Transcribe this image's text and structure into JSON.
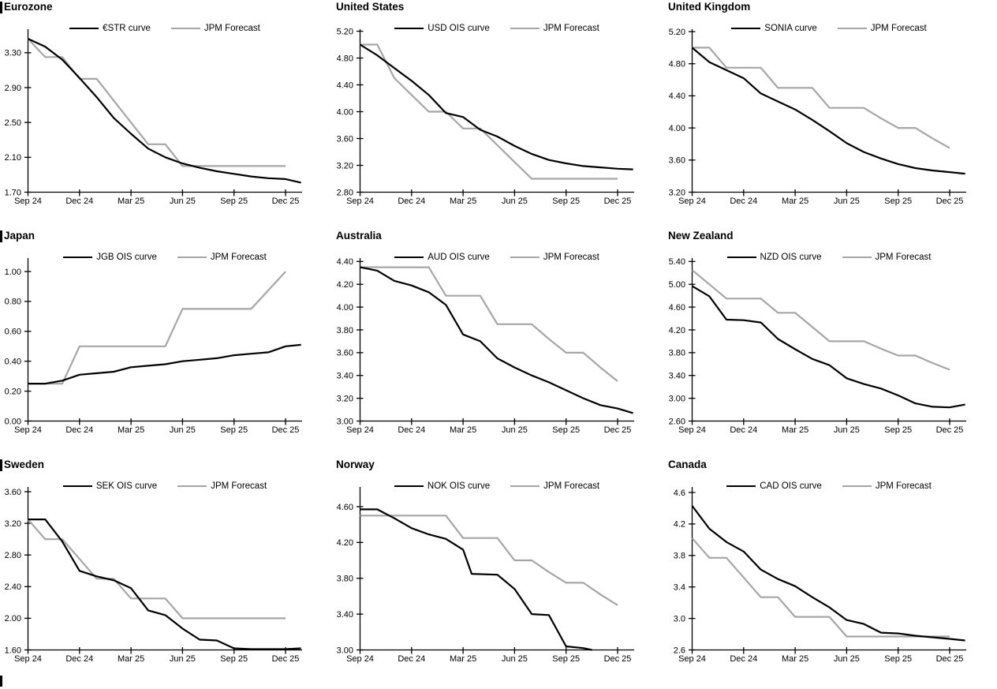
{
  "page": {
    "background": "#ffffff",
    "bottom_left_marker": true
  },
  "colors": {
    "curve": "#000000",
    "forecast": "#a6a6a6",
    "axis": "#000000"
  },
  "x_axis_labels": [
    "Sep 24",
    "Dec 24",
    "Mar 25",
    "Jun 25",
    "Sep 25",
    "Dec 25"
  ],
  "chart_data": [
    {
      "type": "line",
      "title": "Eurozone",
      "title_bar": true,
      "x_tick_labels": [
        "Sep 24",
        "Dec 24",
        "Mar 25",
        "Jun 25",
        "Sep 25",
        "Dec 25"
      ],
      "x_tick_months": [
        0,
        3,
        6,
        9,
        12,
        15
      ],
      "ylim": [
        1.7,
        3.57
      ],
      "y_tick_values": [
        1.7,
        2.1,
        2.5,
        2.9,
        3.3
      ],
      "y_tick_labels": [
        "1.70",
        "2.10",
        "2.50",
        "2.90",
        "3.30"
      ],
      "legend_position": "top-center",
      "series": [
        {
          "name": "€STR curve",
          "color": "#000000",
          "width": 2.2,
          "x": [
            0,
            1,
            2,
            3,
            4,
            5,
            6,
            7,
            8,
            9,
            10,
            11,
            12,
            13,
            14,
            15,
            15.9
          ],
          "y": [
            3.46,
            3.37,
            3.22,
            3.01,
            2.79,
            2.55,
            2.37,
            2.2,
            2.1,
            2.03,
            1.98,
            1.94,
            1.91,
            1.88,
            1.86,
            1.85,
            1.81
          ]
        },
        {
          "name": "JPM Forecast",
          "color": "#a6a6a6",
          "width": 2.2,
          "x": [
            0,
            1,
            2,
            3,
            4,
            5,
            6,
            7,
            8,
            9,
            10,
            11,
            12,
            13,
            14,
            15
          ],
          "y": [
            3.46,
            3.25,
            3.25,
            3.0,
            3.0,
            2.75,
            2.5,
            2.25,
            2.25,
            2.0,
            2.0,
            2.0,
            2.0,
            2.0,
            2.0,
            2.0
          ]
        }
      ]
    },
    {
      "type": "line",
      "title": "United States",
      "title_bar": false,
      "x_tick_labels": [
        "Sep 24",
        "Dec 24",
        "Mar 25",
        "Jun 25",
        "Sep 25",
        "Dec 25"
      ],
      "x_tick_months": [
        0,
        3,
        6,
        9,
        12,
        15
      ],
      "ylim": [
        2.8,
        5.23
      ],
      "y_tick_values": [
        2.8,
        3.2,
        3.6,
        4.0,
        4.4,
        4.8,
        5.2
      ],
      "y_tick_labels": [
        "2.80",
        "3.20",
        "3.60",
        "4.00",
        "4.40",
        "4.80",
        "5.20"
      ],
      "legend_position": "top-center",
      "series": [
        {
          "name": "USD OIS curve",
          "color": "#000000",
          "width": 2.2,
          "x": [
            0,
            1,
            2,
            3,
            4,
            5,
            6,
            7,
            8,
            9,
            10,
            11,
            12,
            13,
            14,
            15,
            15.9
          ],
          "y": [
            5.0,
            4.84,
            4.65,
            4.46,
            4.25,
            3.98,
            3.92,
            3.73,
            3.63,
            3.49,
            3.37,
            3.28,
            3.23,
            3.19,
            3.17,
            3.15,
            3.14
          ]
        },
        {
          "name": "JPM Forecast",
          "color": "#a6a6a6",
          "width": 2.2,
          "x": [
            0,
            1,
            2,
            3,
            4,
            5,
            6,
            7,
            8,
            9,
            10,
            11,
            12,
            13,
            14,
            15
          ],
          "y": [
            5.0,
            5.0,
            4.5,
            4.25,
            4.0,
            4.0,
            3.75,
            3.75,
            3.5,
            3.25,
            3.0,
            3.0,
            3.0,
            3.0,
            3.0,
            3.0
          ]
        }
      ]
    },
    {
      "type": "line",
      "title": "United Kingdom",
      "title_bar": false,
      "x_tick_labels": [
        "Sep 24",
        "Dec 24",
        "Mar 25",
        "Jun 25",
        "Sep 25",
        "Dec 25"
      ],
      "x_tick_months": [
        0,
        3,
        6,
        9,
        12,
        15
      ],
      "ylim": [
        3.2,
        5.23
      ],
      "y_tick_values": [
        3.2,
        3.6,
        4.0,
        4.4,
        4.8,
        5.2
      ],
      "y_tick_labels": [
        "3.20",
        "3.60",
        "4.00",
        "4.40",
        "4.80",
        "5.20"
      ],
      "legend_position": "top-center",
      "series": [
        {
          "name": "SONIA curve",
          "color": "#000000",
          "width": 2.2,
          "x": [
            0,
            1,
            2,
            3,
            4,
            5,
            6,
            7,
            8,
            9,
            10,
            11,
            12,
            13,
            14,
            15,
            15.9
          ],
          "y": [
            5.0,
            4.82,
            4.72,
            4.62,
            4.43,
            4.33,
            4.23,
            4.1,
            3.96,
            3.81,
            3.7,
            3.62,
            3.55,
            3.5,
            3.47,
            3.45,
            3.43
          ]
        },
        {
          "name": "JPM Forecast",
          "color": "#a6a6a6",
          "width": 2.2,
          "x": [
            0,
            1,
            2,
            3,
            4,
            5,
            6,
            7,
            8,
            9,
            10,
            11,
            12,
            13,
            14,
            15
          ],
          "y": [
            5.0,
            5.0,
            4.75,
            4.75,
            4.75,
            4.5,
            4.5,
            4.5,
            4.25,
            4.25,
            4.25,
            4.12,
            4.0,
            4.0,
            3.87,
            3.75
          ]
        }
      ]
    },
    {
      "type": "line",
      "title": "Japan",
      "title_bar": true,
      "x_tick_labels": [
        "Sep 24",
        "Dec 24",
        "Mar 25",
        "Jun 25",
        "Sep 25",
        "Dec 25"
      ],
      "x_tick_months": [
        0,
        3,
        6,
        9,
        12,
        15
      ],
      "ylim": [
        0.0,
        1.09
      ],
      "y_tick_values": [
        0.0,
        0.2,
        0.4,
        0.6,
        0.8,
        1.0
      ],
      "y_tick_labels": [
        "0.00",
        "0.20",
        "0.40",
        "0.60",
        "0.80",
        "1.00"
      ],
      "legend_position": "top-center",
      "series": [
        {
          "name": "JGB OIS curve",
          "color": "#000000",
          "width": 2.2,
          "x": [
            0,
            1,
            2,
            3,
            4,
            5,
            6,
            7,
            8,
            9,
            10,
            11,
            12,
            13,
            14,
            15,
            15.9
          ],
          "y": [
            0.25,
            0.25,
            0.27,
            0.31,
            0.32,
            0.33,
            0.36,
            0.37,
            0.38,
            0.4,
            0.41,
            0.42,
            0.44,
            0.45,
            0.46,
            0.5,
            0.51
          ]
        },
        {
          "name": "JPM Forecast",
          "color": "#a6a6a6",
          "width": 2.2,
          "x": [
            0,
            1,
            2,
            3,
            4,
            5,
            6,
            7,
            8,
            9,
            10,
            11,
            12,
            13,
            14,
            15
          ],
          "y": [
            0.25,
            0.25,
            0.25,
            0.5,
            0.5,
            0.5,
            0.5,
            0.5,
            0.5,
            0.75,
            0.75,
            0.75,
            0.75,
            0.75,
            0.875,
            1.0
          ]
        }
      ]
    },
    {
      "type": "line",
      "title": "Australia",
      "title_bar": false,
      "x_tick_labels": [
        "Sep 24",
        "Dec 24",
        "Mar 25",
        "Jun 25",
        "Sep 25",
        "Dec 25"
      ],
      "x_tick_months": [
        0,
        3,
        6,
        9,
        12,
        15
      ],
      "ylim": [
        3.0,
        4.43
      ],
      "y_tick_values": [
        3.0,
        3.2,
        3.4,
        3.6,
        3.8,
        4.0,
        4.2,
        4.4
      ],
      "y_tick_labels": [
        "3.00",
        "3.20",
        "3.40",
        "3.60",
        "3.80",
        "4.00",
        "4.20",
        "4.40"
      ],
      "legend_position": "top-center",
      "series": [
        {
          "name": "AUD OIS curve",
          "color": "#000000",
          "width": 2.2,
          "x": [
            0,
            1,
            2,
            3,
            4,
            5,
            6,
            7,
            8,
            9,
            10,
            11,
            12,
            13,
            14,
            15,
            15.9
          ],
          "y": [
            4.35,
            4.32,
            4.23,
            4.19,
            4.13,
            4.02,
            3.76,
            3.7,
            3.55,
            3.47,
            3.4,
            3.34,
            3.27,
            3.2,
            3.14,
            3.11,
            3.07
          ]
        },
        {
          "name": "JPM Forecast",
          "color": "#a6a6a6",
          "width": 2.2,
          "x": [
            0,
            1,
            2,
            3,
            4,
            5,
            6,
            7,
            8,
            9,
            10,
            11,
            12,
            13,
            14,
            15
          ],
          "y": [
            4.35,
            4.35,
            4.35,
            4.35,
            4.35,
            4.1,
            4.1,
            4.1,
            3.85,
            3.85,
            3.85,
            3.72,
            3.6,
            3.6,
            3.47,
            3.35
          ]
        }
      ]
    },
    {
      "type": "line",
      "title": "New Zealand",
      "title_bar": false,
      "x_tick_labels": [
        "Sep 24",
        "Dec 24",
        "Mar 25",
        "Jun 25",
        "Sep 25",
        "Dec 25"
      ],
      "x_tick_months": [
        0,
        3,
        6,
        9,
        12,
        15
      ],
      "ylim": [
        2.6,
        5.46
      ],
      "y_tick_values": [
        2.6,
        3.0,
        3.4,
        3.8,
        4.2,
        4.6,
        5.0,
        5.4
      ],
      "y_tick_labels": [
        "2.60",
        "3.00",
        "3.40",
        "3.80",
        "4.20",
        "4.60",
        "5.00",
        "5.40"
      ],
      "legend_position": "top-center",
      "series": [
        {
          "name": "NZD OIS curve",
          "color": "#000000",
          "width": 2.2,
          "x": [
            0,
            1,
            2,
            3,
            4,
            5,
            6,
            7,
            8,
            9,
            10,
            11,
            12,
            13,
            14,
            15,
            15.9
          ],
          "y": [
            4.97,
            4.79,
            4.38,
            4.37,
            4.33,
            4.04,
            3.86,
            3.69,
            3.58,
            3.35,
            3.25,
            3.17,
            3.05,
            2.91,
            2.85,
            2.84,
            2.89
          ]
        },
        {
          "name": "JPM Forecast",
          "color": "#a6a6a6",
          "width": 2.2,
          "x": [
            0,
            1,
            2,
            3,
            4,
            5,
            6,
            7,
            8,
            9,
            10,
            11,
            12,
            13,
            14,
            15
          ],
          "y": [
            5.25,
            5.0,
            4.75,
            4.75,
            4.75,
            4.5,
            4.5,
            4.25,
            4.0,
            4.0,
            4.0,
            3.87,
            3.75,
            3.75,
            3.62,
            3.5
          ]
        }
      ]
    },
    {
      "type": "line",
      "title": "Sweden",
      "title_bar": true,
      "x_tick_labels": [
        "Sep 24",
        "Dec 24",
        "Mar 25",
        "Jun 25",
        "Sep 25",
        "Dec 25"
      ],
      "x_tick_months": [
        0,
        3,
        6,
        9,
        12,
        15
      ],
      "ylim": [
        1.6,
        3.66
      ],
      "y_tick_values": [
        1.6,
        2.0,
        2.4,
        2.8,
        3.2,
        3.6
      ],
      "y_tick_labels": [
        "1.60",
        "2.00",
        "2.40",
        "2.80",
        "3.20",
        "3.60"
      ],
      "legend_position": "top-center",
      "series": [
        {
          "name": "SEK OIS curve",
          "color": "#000000",
          "width": 2.2,
          "x": [
            0,
            1,
            2,
            3,
            4,
            5,
            6,
            7,
            8,
            9,
            10,
            11,
            12,
            13,
            14,
            15,
            15.9
          ],
          "y": [
            3.25,
            3.25,
            2.97,
            2.6,
            2.53,
            2.48,
            2.38,
            2.1,
            2.04,
            1.87,
            1.73,
            1.72,
            1.62,
            1.61,
            1.61,
            1.61,
            1.62
          ]
        },
        {
          "name": "JPM Forecast",
          "color": "#a6a6a6",
          "width": 2.2,
          "x": [
            0,
            1,
            2,
            3,
            4,
            5,
            6,
            7,
            8,
            9,
            10,
            11,
            12,
            13,
            14,
            15
          ],
          "y": [
            3.25,
            3.0,
            3.0,
            2.75,
            2.5,
            2.5,
            2.25,
            2.25,
            2.25,
            2.0,
            2.0,
            2.0,
            2.0,
            2.0,
            2.0,
            2.0
          ]
        }
      ]
    },
    {
      "type": "line",
      "title": "Norway",
      "title_bar": false,
      "x_tick_labels": [
        "Sep 24",
        "Dec 24",
        "Mar 25",
        "Jun 25",
        "Sep 25",
        "Dec 25"
      ],
      "x_tick_months": [
        0,
        3,
        6,
        9,
        12,
        15
      ],
      "ylim": [
        3.0,
        4.82
      ],
      "y_tick_values": [
        3.0,
        3.4,
        3.8,
        4.2,
        4.6
      ],
      "y_tick_labels": [
        "3.00",
        "3.40",
        "3.80",
        "4.20",
        "4.60"
      ],
      "legend_position": "top-center",
      "series": [
        {
          "name": "NOK OIS curve",
          "color": "#000000",
          "width": 2.2,
          "x": [
            0,
            1,
            2,
            3,
            4,
            5,
            6,
            6.5,
            8,
            9,
            10,
            11,
            12,
            13,
            13.5
          ],
          "y": [
            4.57,
            4.57,
            4.47,
            4.36,
            4.29,
            4.24,
            4.12,
            3.85,
            3.84,
            3.68,
            3.4,
            3.39,
            3.04,
            3.02,
            3.0
          ]
        },
        {
          "name": "JPM Forecast",
          "color": "#a6a6a6",
          "width": 2.2,
          "x": [
            0,
            1,
            2,
            3,
            4,
            5,
            6,
            7,
            8,
            9,
            10,
            11,
            12,
            13,
            14,
            15
          ],
          "y": [
            4.5,
            4.5,
            4.5,
            4.5,
            4.5,
            4.5,
            4.25,
            4.25,
            4.25,
            4.0,
            4.0,
            3.87,
            3.75,
            3.75,
            3.62,
            3.5
          ]
        }
      ]
    },
    {
      "type": "line",
      "title": "Canada",
      "title_bar": false,
      "x_tick_labels": [
        "Sep 24",
        "Dec 24",
        "Mar 25",
        "Jun 25",
        "Sep 25",
        "Dec 25"
      ],
      "x_tick_months": [
        0,
        3,
        6,
        9,
        12,
        15
      ],
      "ylim": [
        2.6,
        4.67
      ],
      "y_tick_values": [
        2.6,
        3.0,
        3.4,
        3.8,
        4.2,
        4.6
      ],
      "y_tick_labels": [
        "2.6",
        "3.0",
        "3.4",
        "3.8",
        "4.2",
        "4.6"
      ],
      "legend_position": "top-center",
      "series": [
        {
          "name": "CAD OIS curve",
          "color": "#000000",
          "width": 2.2,
          "x": [
            0,
            1,
            2,
            3,
            4,
            5,
            6,
            7,
            8,
            9,
            10,
            11,
            12,
            13,
            14,
            15,
            15.9
          ],
          "y": [
            4.43,
            4.14,
            3.97,
            3.85,
            3.62,
            3.5,
            3.41,
            3.27,
            3.14,
            2.98,
            2.93,
            2.82,
            2.81,
            2.78,
            2.76,
            2.74,
            2.72
          ]
        },
        {
          "name": "JPM Forecast",
          "color": "#a6a6a6",
          "width": 2.2,
          "x": [
            0,
            1,
            2,
            3,
            4,
            5,
            6,
            7,
            8,
            9,
            10,
            11,
            12,
            13,
            14,
            15
          ],
          "y": [
            4.02,
            3.77,
            3.77,
            3.52,
            3.27,
            3.27,
            3.02,
            3.02,
            3.02,
            2.77,
            2.77,
            2.77,
            2.77,
            2.77,
            2.77,
            2.77
          ]
        }
      ]
    }
  ]
}
